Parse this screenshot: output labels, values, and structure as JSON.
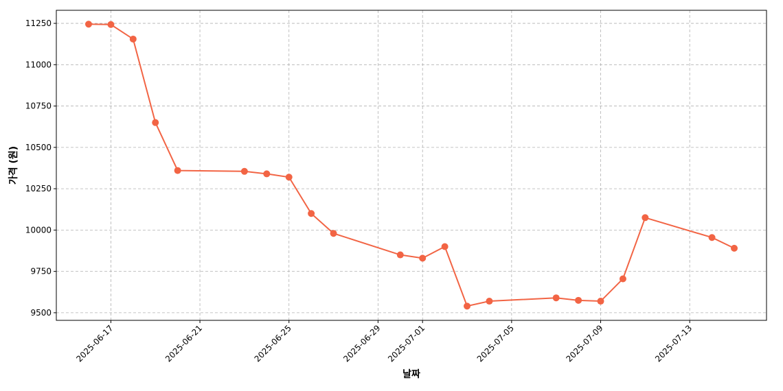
{
  "chart_data": {
    "type": "line",
    "x_label": "날짜",
    "y_label": "가격 (원)",
    "x": [
      "2025-06-16",
      "2025-06-17",
      "2025-06-18",
      "2025-06-19",
      "2025-06-20",
      "2025-06-23",
      "2025-06-24",
      "2025-06-25",
      "2025-06-26",
      "2025-06-27",
      "2025-06-30",
      "2025-07-01",
      "2025-07-02",
      "2025-07-03",
      "2025-07-04",
      "2025-07-07",
      "2025-07-08",
      "2025-07-09",
      "2025-07-10",
      "2025-07-11",
      "2025-07-14",
      "2025-07-15"
    ],
    "series": [
      {
        "color": "#f26444",
        "values": [
          11245,
          11243,
          11155,
          10650,
          10360,
          10355,
          10340,
          10320,
          10100,
          9980,
          9850,
          9830,
          9900,
          9540,
          9570,
          9590,
          9575,
          9570,
          9705,
          10075,
          9955,
          9890
        ]
      }
    ],
    "xticks": [
      "2025-06-17",
      "2025-06-21",
      "2025-06-25",
      "2025-06-29",
      "2025-07-01",
      "2025-07-05",
      "2025-07-09",
      "2025-07-13"
    ],
    "ylim": [
      9454,
      11329
    ],
    "yticks": [
      9500,
      9750,
      10000,
      10250,
      10500,
      10750,
      11000,
      11250
    ],
    "grid": true
  }
}
